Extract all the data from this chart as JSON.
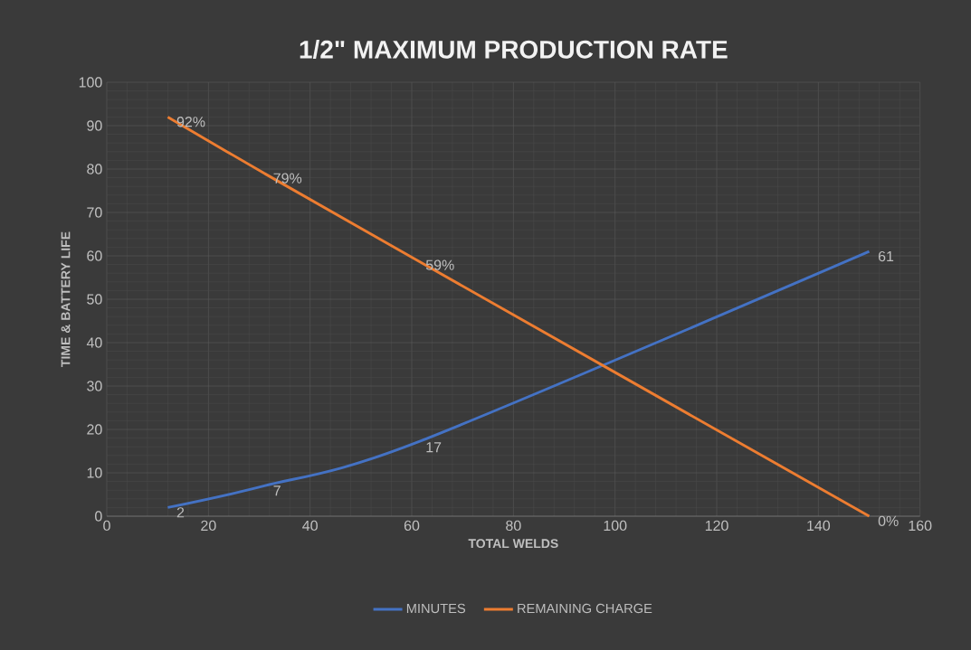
{
  "chart_data": {
    "type": "line",
    "title": "1/2\" MAXIMUM PRODUCTION RATE",
    "xlabel": "TOTAL WELDS",
    "ylabel": "TIME & BATTERY LIFE",
    "series": [
      {
        "name": "MINUTES",
        "color": "#4472c4",
        "x": [
          12,
          31,
          61,
          150
        ],
        "values": [
          2,
          7,
          17,
          61
        ],
        "value_labels": [
          "2",
          "7",
          "17",
          "61"
        ]
      },
      {
        "name": "REMAINING CHARGE",
        "color": "#ed7d31",
        "x": [
          12,
          31,
          61,
          150
        ],
        "values": [
          92,
          79,
          59,
          0
        ],
        "value_labels": [
          "92%",
          "79%",
          "59%",
          "0%"
        ]
      }
    ],
    "xlim": [
      0,
      160
    ],
    "xticks": [
      0,
      20,
      40,
      60,
      80,
      100,
      120,
      140,
      160
    ],
    "ylim": [
      0,
      100
    ],
    "yticks": [
      0,
      10,
      20,
      30,
      40,
      50,
      60,
      70,
      80,
      90,
      100
    ],
    "grid": true,
    "legend": "bottom"
  }
}
